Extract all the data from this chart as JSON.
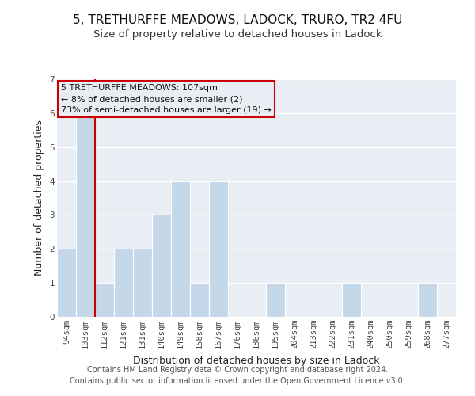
{
  "title": "5, TRETHURFFE MEADOWS, LADOCK, TRURO, TR2 4FU",
  "subtitle": "Size of property relative to detached houses in Ladock",
  "xlabel": "Distribution of detached houses by size in Ladock",
  "ylabel": "Number of detached properties",
  "bar_labels": [
    "94sqm",
    "103sqm",
    "112sqm",
    "121sqm",
    "131sqm",
    "140sqm",
    "149sqm",
    "158sqm",
    "167sqm",
    "176sqm",
    "186sqm",
    "195sqm",
    "204sqm",
    "213sqm",
    "222sqm",
    "231sqm",
    "240sqm",
    "250sqm",
    "259sqm",
    "268sqm",
    "277sqm"
  ],
  "bar_values": [
    2,
    6,
    1,
    2,
    2,
    3,
    4,
    1,
    4,
    0,
    0,
    1,
    0,
    0,
    0,
    1,
    0,
    0,
    0,
    1,
    0
  ],
  "bar_color": "#c5d8ea",
  "grid_color": "#ffffff",
  "bg_color": "#e8eef4",
  "outer_bg": "#ffffff",
  "red_line_x": 1.5,
  "ylim": [
    0,
    7
  ],
  "yticks": [
    0,
    1,
    2,
    3,
    4,
    5,
    6,
    7
  ],
  "annotation_text_line1": "5 TRETHURFFE MEADOWS: 107sqm",
  "annotation_text_line2": "← 8% of detached houses are smaller (2)",
  "annotation_text_line3": "73% of semi-detached houses are larger (19) →",
  "footer_line1": "Contains HM Land Registry data © Crown copyright and database right 2024.",
  "footer_line2": "Contains public sector information licensed under the Open Government Licence v3.0.",
  "title_fontsize": 11,
  "subtitle_fontsize": 9.5,
  "axis_label_fontsize": 9,
  "tick_fontsize": 7.5,
  "annot_fontsize": 8,
  "footer_fontsize": 7
}
